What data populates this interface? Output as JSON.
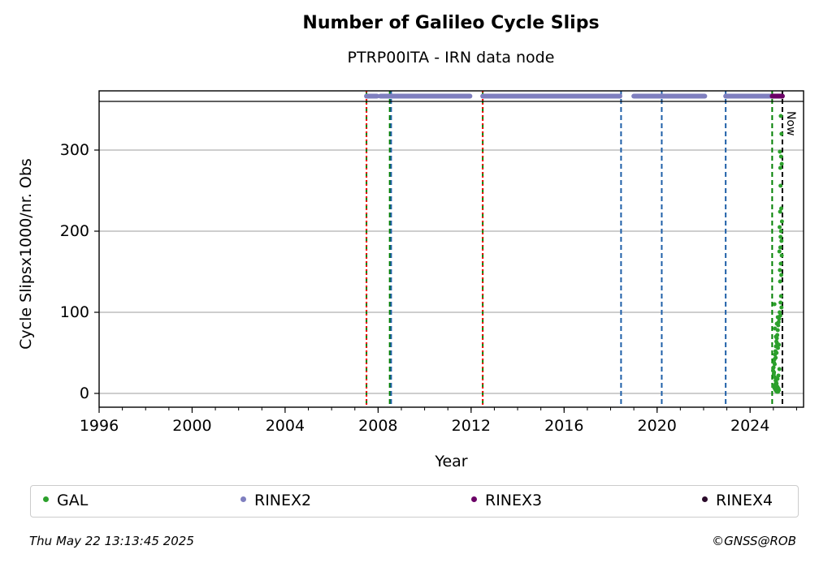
{
  "chart_data": {
    "type": "scatter",
    "title": "Number of Galileo Cycle Slips",
    "subtitle": "PTRP00ITA - IRN data node",
    "xlabel": "Year",
    "ylabel": "Cycle Slipsx1000/nr. Obs",
    "xlim": [
      1996,
      2026.3
    ],
    "ylim": [
      -17,
      360
    ],
    "xticks": [
      1996,
      2000,
      2004,
      2008,
      2012,
      2016,
      2020,
      2024
    ],
    "yticks": [
      0,
      100,
      200,
      300
    ],
    "grid": "y-major",
    "now_label": "Now",
    "now_date": 2025.39,
    "legend_position": "bottom",
    "vertical_lines": [
      {
        "x": 2007.5,
        "color": "#008000",
        "style": "dashed"
      },
      {
        "x": 2007.5,
        "color": "#ff0000",
        "style": "dotted"
      },
      {
        "x": 2008.5,
        "color": "#008000",
        "style": "dashed"
      },
      {
        "x": 2008.56,
        "color": "#1f5fa8",
        "style": "dashed"
      },
      {
        "x": 2012.5,
        "color": "#008000",
        "style": "dashed"
      },
      {
        "x": 2012.5,
        "color": "#ff0000",
        "style": "dotted"
      },
      {
        "x": 2018.45,
        "color": "#1f5fa8",
        "style": "dashed"
      },
      {
        "x": 2020.2,
        "color": "#1f5fa8",
        "style": "dashed"
      },
      {
        "x": 2022.95,
        "color": "#1f5fa8",
        "style": "dashed"
      },
      {
        "x": 2024.95,
        "color": "#008000",
        "style": "dashed"
      }
    ],
    "format_bands": [
      {
        "name": "RINEX2",
        "color": "#7f7fbf",
        "start": 2007.5,
        "end": 2007.95
      },
      {
        "name": "RINEX2",
        "color": "#7f7fbf",
        "start": 2008.1,
        "end": 2011.95
      },
      {
        "name": "RINEX2",
        "color": "#7f7fbf",
        "start": 2012.5,
        "end": 2018.4
      },
      {
        "name": "RINEX2",
        "color": "#7f7fbf",
        "start": 2019.0,
        "end": 2022.05
      },
      {
        "name": "RINEX2",
        "color": "#7f7fbf",
        "start": 2022.95,
        "end": 2025.0
      },
      {
        "name": "RINEX3",
        "color": "#6b0066",
        "start": 2024.95,
        "end": 2025.39
      }
    ],
    "series": [
      {
        "name": "GAL",
        "color": "#2ca02c",
        "x": [
          2025.32,
          2025.35,
          2025.28,
          2025.33,
          2025.36,
          2025.3,
          2025.31,
          2025.34,
          2025.29,
          2025.37,
          2025.27,
          2025.33,
          2025.31,
          2025.35,
          2025.3,
          2025.26,
          2025.36,
          2025.32,
          2025.28,
          2025.34,
          2025.29,
          2025.33,
          2025.31,
          2025.35,
          2025.27,
          2025.3,
          2025.25,
          2025.23,
          2025.21,
          2025.19,
          2025.17,
          2025.15,
          2025.13,
          2025.11,
          2025.09,
          2025.07,
          2025.05,
          2025.03,
          2025.01,
          2024.99,
          2025.02,
          2025.06,
          2025.1,
          2025.14,
          2025.18,
          2025.22,
          2025.24,
          2025.2,
          2025.16,
          2025.12,
          2025.08,
          2025.04,
          2025.0,
          2025.12,
          2025.18,
          2025.22,
          2025.26,
          2025.06,
          2025.1,
          2025.14,
          2025.2,
          2025.16,
          2025.03,
          2025.08,
          2025.24,
          2025.11,
          2025.07,
          2025.15,
          2025.19,
          2025.05
        ],
        "values": [
          342,
          320,
          298,
          292,
          283,
          278,
          256,
          228,
          224,
          212,
          205,
          200,
          193,
          188,
          180,
          175,
          170,
          160,
          152,
          146,
          138,
          120,
          112,
          106,
          100,
          96,
          92,
          88,
          84,
          78,
          72,
          68,
          64,
          58,
          52,
          48,
          42,
          38,
          32,
          28,
          24,
          20,
          16,
          12,
          8,
          6,
          4,
          2,
          2,
          3,
          5,
          7,
          9,
          14,
          18,
          22,
          30,
          36,
          44,
          50,
          56,
          62,
          26,
          11,
          60,
          70,
          80,
          86,
          94,
          110
        ]
      },
      {
        "name": "RINEX2",
        "color": "#7f7fbf"
      },
      {
        "name": "RINEX3",
        "color": "#6b0066"
      },
      {
        "name": "RINEX4",
        "color": "#2a0a2a"
      }
    ]
  },
  "legend": {
    "gal": "GAL",
    "rinex2": "RINEX2",
    "rinex3": "RINEX3",
    "rinex4": "RINEX4"
  },
  "footer": {
    "timestamp": "Thu May 22 13:13:45 2025",
    "copyright": "©GNSS@ROB"
  }
}
